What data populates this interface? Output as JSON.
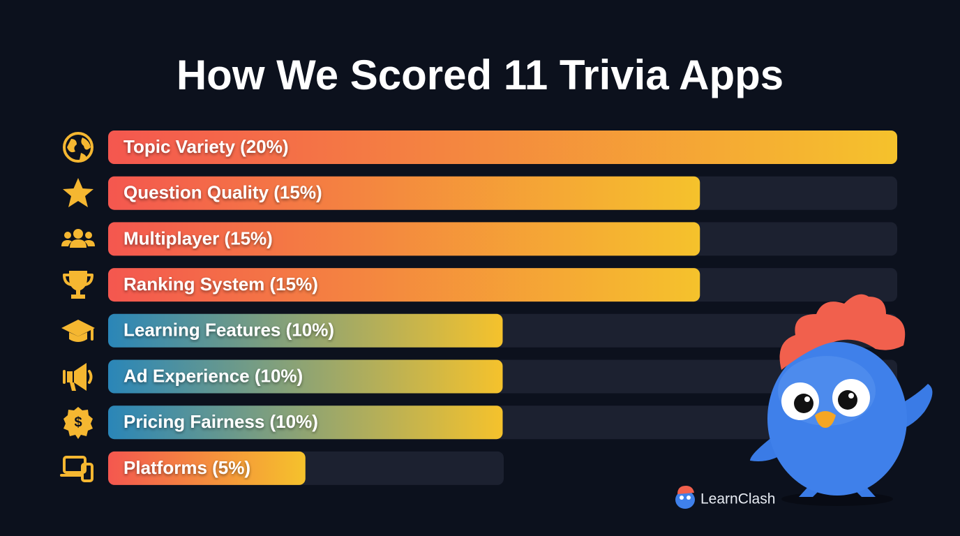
{
  "chart_data": {
    "type": "bar",
    "orientation": "horizontal",
    "title": "How We Scored 11 Trivia Apps",
    "categories": [
      "Topic Variety (20%)",
      "Question Quality (15%)",
      "Multiplayer (15%)",
      "Ranking System (15%)",
      "Learning Features (10%)",
      "Ad Experience (10%)",
      "Pricing Fairness (10%)",
      "Platforms (5%)"
    ],
    "values": [
      20,
      15,
      15,
      15,
      10,
      10,
      10,
      5
    ],
    "bar_gradients": [
      [
        "#f4574f",
        "#f5c22c"
      ],
      [
        "#f4574f",
        "#f5c22c"
      ],
      [
        "#f4574f",
        "#f5c22c"
      ],
      [
        "#f4574f",
        "#f5c22c"
      ],
      [
        "#2a86b8",
        "#f5c22c"
      ],
      [
        "#2a86b8",
        "#f5c22c"
      ],
      [
        "#2a86b8",
        "#f5c22c"
      ],
      [
        "#f4574f",
        "#f5c22c"
      ]
    ],
    "brand": "LearnClash"
  }
}
